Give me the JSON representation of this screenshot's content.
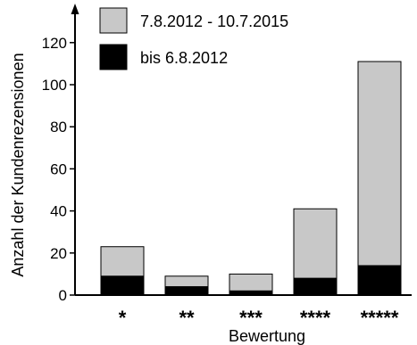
{
  "chart_data": {
    "type": "bar",
    "stacked": true,
    "categories": [
      "*",
      "**",
      "***",
      "****",
      "*****"
    ],
    "series": [
      {
        "name": "bis 6.8.2012",
        "color": "#000000",
        "values": [
          9,
          4,
          2,
          8,
          14
        ]
      },
      {
        "name": "7.8.2012 - 10.7.2015",
        "color": "#c8c8c8",
        "values": [
          14,
          5,
          8,
          33,
          97
        ]
      }
    ],
    "xlabel": "Bewertung",
    "ylabel": "Anzahl der Kundenrezensionen",
    "ylim": [
      0,
      128
    ],
    "yticks": [
      0,
      20,
      40,
      60,
      80,
      100,
      120
    ],
    "grid": false,
    "legend": {
      "position": "top-left",
      "entries": [
        {
          "label": "7.8.2012 - 10.7.2015",
          "color": "#c8c8c8"
        },
        {
          "label": "bis 6.8.2012",
          "color": "#000000"
        }
      ]
    }
  }
}
